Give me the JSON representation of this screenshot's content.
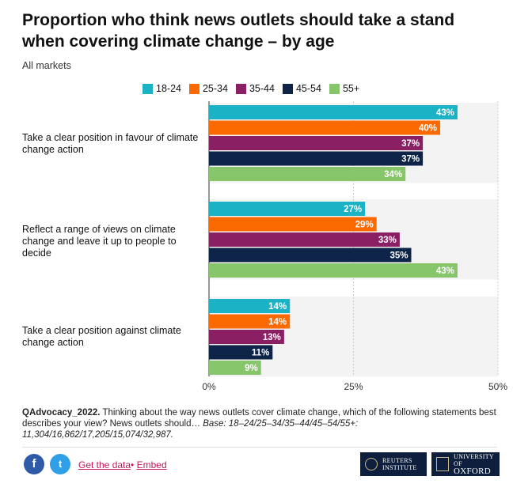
{
  "title": "Proportion who think news outlets should take a stand when covering climate change – by age",
  "subtitle": "All markets",
  "colors": {
    "18-24": "#1ab2c4",
    "25-34": "#fb6a00",
    "35-44": "#8b1f63",
    "45-54": "#0d2448",
    "55+": "#87c56b",
    "band": "#f3f3f3",
    "grid": "#cccccc"
  },
  "chart_data": {
    "type": "bar",
    "orientation": "horizontal",
    "categories": [
      "Take a clear position in favour of climate change action",
      "Reflect a range of views on climate change and leave it up to people to decide",
      "Take a clear position against climate change action"
    ],
    "series": [
      {
        "name": "18-24",
        "values": [
          43,
          27,
          14
        ]
      },
      {
        "name": "25-34",
        "values": [
          40,
          29,
          14
        ]
      },
      {
        "name": "35-44",
        "values": [
          37,
          33,
          13
        ]
      },
      {
        "name": "45-54",
        "values": [
          37,
          35,
          11
        ]
      },
      {
        "name": "55+",
        "values": [
          34,
          43,
          9
        ]
      }
    ],
    "xlim": [
      0,
      50
    ],
    "x_ticks": [
      "0%",
      "25%",
      "50%"
    ],
    "x_tick_values": [
      0,
      25,
      50
    ],
    "value_suffix": "%",
    "legend_position": "top",
    "grid": true
  },
  "footnote": {
    "question_id": "QAdvocacy_2022.",
    "question_text": " Thinking about the way news outlets cover climate change, which of the following statements best describes your view? News outlets should… ",
    "base": "Base: 18–24/25–34/35–44/45–54/55+: 11,304/16,862/17,205/15,074/32,987."
  },
  "footer": {
    "facebook_icon": "f",
    "twitter_icon": "t",
    "get_data": "Get the data",
    "separator": "•",
    "embed": "Embed",
    "reuters_line1": "REUTERS",
    "reuters_line2": "INSTITUTE",
    "oxford_line1": "UNIVERSITY OF",
    "oxford_line2": "OXFORD"
  }
}
